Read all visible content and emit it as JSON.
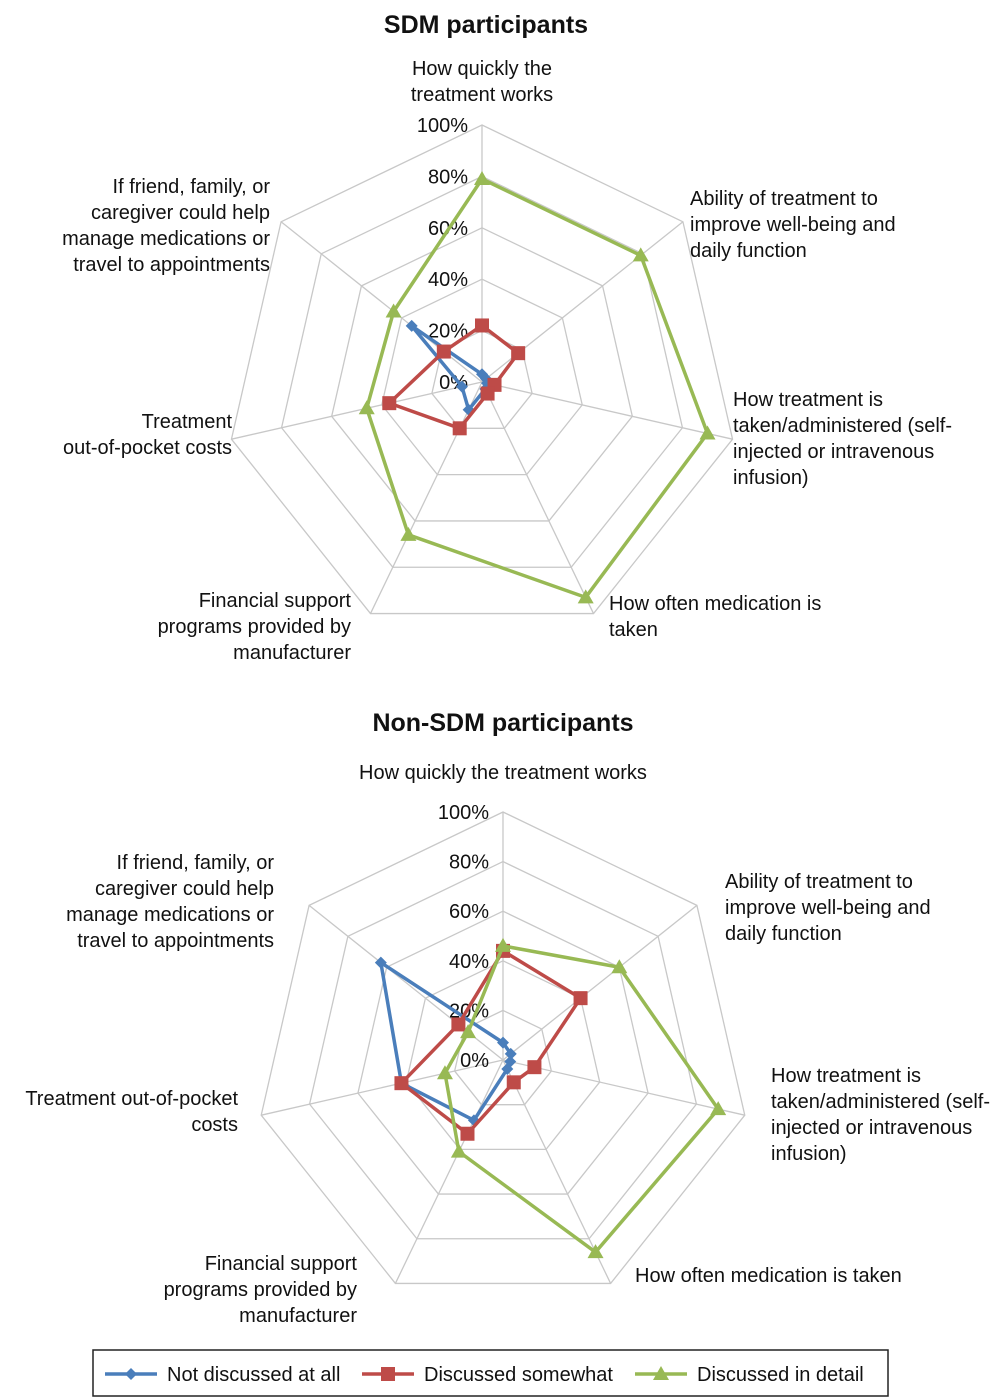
{
  "chart_data": [
    {
      "type": "radar",
      "title": "SDM participants",
      "categories": [
        "How quickly the\ntreatment works",
        "Ability of treatment to\nimprove well-being and\ndaily function",
        "How treatment is\ntaken/administered (self-\ninjected or intravenous\ninfusion)",
        "How often medication is\ntaken",
        "Financial support\nprograms provided by\nmanufacturer",
        "Treatment\nout-of-pocket costs",
        "If friend, family, or\ncaregiver could help\nmanage medications or\ntravel to appointments"
      ],
      "ylim": [
        0,
        100
      ],
      "yticks": [
        {
          "value": 0,
          "label": "0%"
        },
        {
          "value": 20,
          "label": "20%"
        },
        {
          "value": 40,
          "label": "40%"
        },
        {
          "value": 60,
          "label": "60%"
        },
        {
          "value": 80,
          "label": "80%"
        },
        {
          "value": 100,
          "label": "100%"
        }
      ],
      "grid": true,
      "series": [
        {
          "name": "Not discussed at all",
          "color": "#4a7ebb",
          "values": [
            3,
            2,
            2,
            3,
            12,
            8,
            35
          ]
        },
        {
          "name": "Discussed somewhat",
          "color": "#be4b48",
          "values": [
            22,
            18,
            5,
            5,
            20,
            37,
            19
          ]
        },
        {
          "name": "Discussed in detail",
          "color": "#98b954",
          "values": [
            79,
            79,
            90,
            93,
            66,
            46,
            44
          ]
        }
      ]
    },
    {
      "type": "radar",
      "title": "Non-SDM participants",
      "categories": [
        "How quickly the treatment works",
        "Ability of treatment to\nimprove well-being and\ndaily function",
        "How treatment is\ntaken/administered (self-\ninjected or intravenous\ninfusion)",
        "How often medication is taken",
        "Financial support\nprograms provided by\nmanufacturer",
        "Treatment out-of-pocket\ncosts",
        "If friend, family, or\ncaregiver could help\nmanage medications or\ntravel to appointments"
      ],
      "ylim": [
        0,
        100
      ],
      "yticks": [
        {
          "value": 0,
          "label": "0%"
        },
        {
          "value": 20,
          "label": "20%"
        },
        {
          "value": 40,
          "label": "40%"
        },
        {
          "value": 60,
          "label": "60%"
        },
        {
          "value": 80,
          "label": "80%"
        },
        {
          "value": 100,
          "label": "100%"
        }
      ],
      "grid": true,
      "series": [
        {
          "color": "#4a7ebb",
          "values": [
            7,
            4,
            3,
            4,
            27,
            42,
            63
          ]
        },
        {
          "color": "#be4b48",
          "values": [
            44,
            40,
            13,
            10,
            33,
            42,
            23
          ]
        },
        {
          "color": "#98b954",
          "values": [
            46,
            60,
            89,
            86,
            41,
            24,
            18
          ]
        }
      ]
    }
  ]
}
